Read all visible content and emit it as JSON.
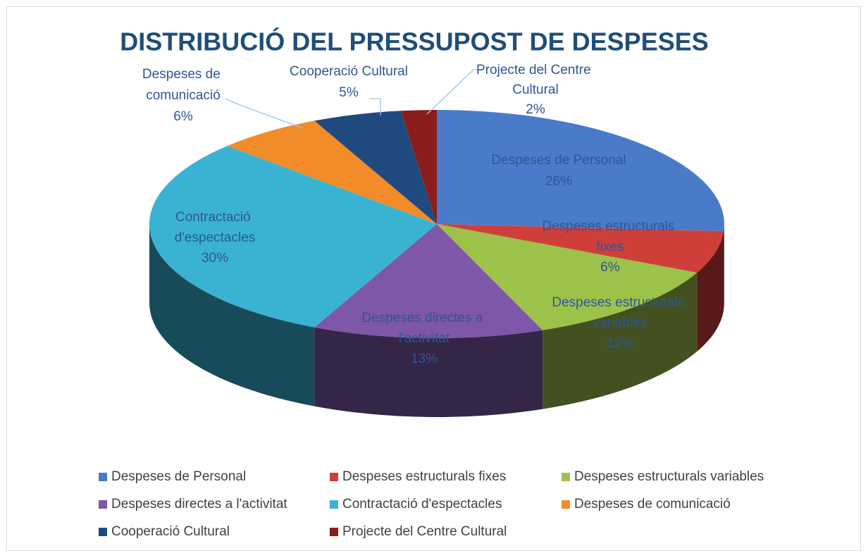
{
  "chart_data": {
    "type": "pie",
    "title": "DISTRIBUCIÓ DEL PRESSUPOST DE DESPESES",
    "categories": [
      "Despeses de Personal",
      "Despeses estructurals fixes",
      "Despeses estructurals variables",
      "Despeses directes a l'activitat",
      "Contractació d'espectacles",
      "Despeses de comunicació",
      "Cooperació Cultural",
      "Projecte del Centre Cultural"
    ],
    "values": [
      26,
      6,
      12,
      13,
      30,
      6,
      5,
      2
    ],
    "value_labels": [
      "26%",
      "6%",
      "12%",
      "13%",
      "30%",
      "6%",
      "5%",
      "2%"
    ],
    "colors": [
      "#4a7bc8",
      "#cf3f3a",
      "#9cc24a",
      "#7e57a8",
      "#3ab3d3",
      "#f28c28",
      "#1f4a7e",
      "#8b1c1c"
    ],
    "legend": "bottom"
  }
}
